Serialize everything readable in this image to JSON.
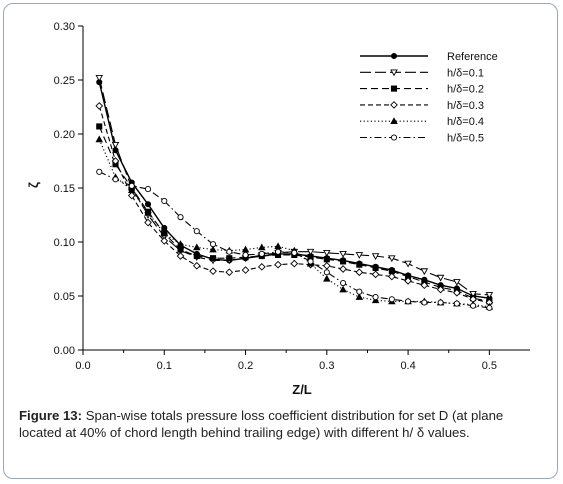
{
  "caption": {
    "label": "Figure 13:",
    "text": " Span-wise totals pressure loss coefficient distribution for set D (at plane located at 40% of chord length behind trailing edge) with different h/ δ values."
  },
  "chart_data": {
    "type": "line",
    "title": "",
    "xlabel": "Z/L",
    "ylabel": "ζ",
    "xlim": [
      0.0,
      0.55
    ],
    "ylim": [
      0.0,
      0.3
    ],
    "x_ticks": [
      "0.0",
      "0.1",
      "0.2",
      "0.3",
      "0.4",
      "0.5"
    ],
    "y_ticks": [
      "0.00",
      "0.05",
      "0.10",
      "0.15",
      "0.20",
      "0.25",
      "0.30"
    ],
    "grid": false,
    "legend_position": "top-right",
    "series": [
      {
        "name": "Reference",
        "marker": "filled-circle",
        "dash": "solid",
        "x": [
          0.02,
          0.04,
          0.06,
          0.08,
          0.1,
          0.12,
          0.14,
          0.16,
          0.18,
          0.2,
          0.22,
          0.24,
          0.26,
          0.28,
          0.3,
          0.32,
          0.34,
          0.36,
          0.38,
          0.4,
          0.42,
          0.44,
          0.46,
          0.48,
          0.5
        ],
        "y": [
          0.248,
          0.185,
          0.155,
          0.135,
          0.113,
          0.097,
          0.089,
          0.084,
          0.083,
          0.085,
          0.087,
          0.089,
          0.089,
          0.087,
          0.085,
          0.083,
          0.08,
          0.077,
          0.074,
          0.069,
          0.065,
          0.06,
          0.057,
          0.05,
          0.048
        ]
      },
      {
        "name": "h/δ=0.1",
        "marker": "open-triangle-down",
        "dash": "long",
        "x": [
          0.02,
          0.04,
          0.06,
          0.08,
          0.1,
          0.12,
          0.14,
          0.16,
          0.18,
          0.2,
          0.22,
          0.24,
          0.26,
          0.28,
          0.3,
          0.32,
          0.34,
          0.36,
          0.38,
          0.4,
          0.42,
          0.44,
          0.46,
          0.48,
          0.5
        ],
        "y": [
          0.252,
          0.19,
          0.15,
          0.125,
          0.105,
          0.092,
          0.086,
          0.083,
          0.083,
          0.085,
          0.088,
          0.09,
          0.091,
          0.091,
          0.09,
          0.089,
          0.088,
          0.087,
          0.085,
          0.08,
          0.073,
          0.067,
          0.063,
          0.052,
          0.051
        ]
      },
      {
        "name": "h/δ=0.2",
        "marker": "filled-square",
        "dash": "medium",
        "x": [
          0.02,
          0.04,
          0.06,
          0.08,
          0.1,
          0.12,
          0.14,
          0.16,
          0.18,
          0.2,
          0.22,
          0.24,
          0.26,
          0.28,
          0.3,
          0.32,
          0.34,
          0.36,
          0.38,
          0.4,
          0.42,
          0.44,
          0.46,
          0.48,
          0.5
        ],
        "y": [
          0.207,
          0.172,
          0.15,
          0.128,
          0.108,
          0.093,
          0.087,
          0.085,
          0.085,
          0.086,
          0.087,
          0.088,
          0.088,
          0.086,
          0.084,
          0.082,
          0.079,
          0.076,
          0.073,
          0.068,
          0.063,
          0.058,
          0.055,
          0.048,
          0.045
        ]
      },
      {
        "name": "h/δ=0.3",
        "marker": "open-diamond",
        "dash": "short",
        "x": [
          0.02,
          0.04,
          0.06,
          0.08,
          0.1,
          0.12,
          0.14,
          0.16,
          0.18,
          0.2,
          0.22,
          0.24,
          0.26,
          0.28,
          0.3,
          0.32,
          0.34,
          0.36,
          0.38,
          0.4,
          0.42,
          0.44,
          0.46,
          0.48,
          0.5
        ],
        "y": [
          0.226,
          0.175,
          0.143,
          0.118,
          0.101,
          0.087,
          0.078,
          0.073,
          0.072,
          0.074,
          0.077,
          0.079,
          0.08,
          0.079,
          0.078,
          0.075,
          0.072,
          0.07,
          0.068,
          0.064,
          0.06,
          0.056,
          0.053,
          0.047,
          0.044
        ]
      },
      {
        "name": "h/δ=0.4",
        "marker": "filled-triangle-up",
        "dash": "dotted",
        "x": [
          0.02,
          0.04,
          0.06,
          0.08,
          0.1,
          0.12,
          0.14,
          0.16,
          0.18,
          0.2,
          0.22,
          0.24,
          0.26,
          0.28,
          0.3,
          0.32,
          0.34,
          0.36,
          0.38,
          0.4,
          0.42,
          0.44,
          0.46,
          0.48,
          0.5
        ],
        "y": [
          0.195,
          0.16,
          0.148,
          0.127,
          0.108,
          0.098,
          0.095,
          0.093,
          0.092,
          0.093,
          0.095,
          0.096,
          0.092,
          0.08,
          0.066,
          0.056,
          0.049,
          0.046,
          0.045,
          0.045,
          0.045,
          0.044,
          0.043,
          0.042,
          0.04
        ]
      },
      {
        "name": "h/δ=0.5",
        "marker": "open-circle",
        "dash": "dash-dot",
        "x": [
          0.02,
          0.04,
          0.06,
          0.08,
          0.1,
          0.12,
          0.14,
          0.16,
          0.18,
          0.2,
          0.22,
          0.24,
          0.26,
          0.28,
          0.3,
          0.32,
          0.34,
          0.36,
          0.38,
          0.4,
          0.42,
          0.44,
          0.46,
          0.48,
          0.5
        ],
        "y": [
          0.165,
          0.158,
          0.152,
          0.149,
          0.138,
          0.123,
          0.11,
          0.098,
          0.091,
          0.088,
          0.089,
          0.091,
          0.09,
          0.082,
          0.072,
          0.062,
          0.054,
          0.049,
          0.047,
          0.045,
          0.044,
          0.044,
          0.043,
          0.041,
          0.039
        ]
      }
    ]
  }
}
